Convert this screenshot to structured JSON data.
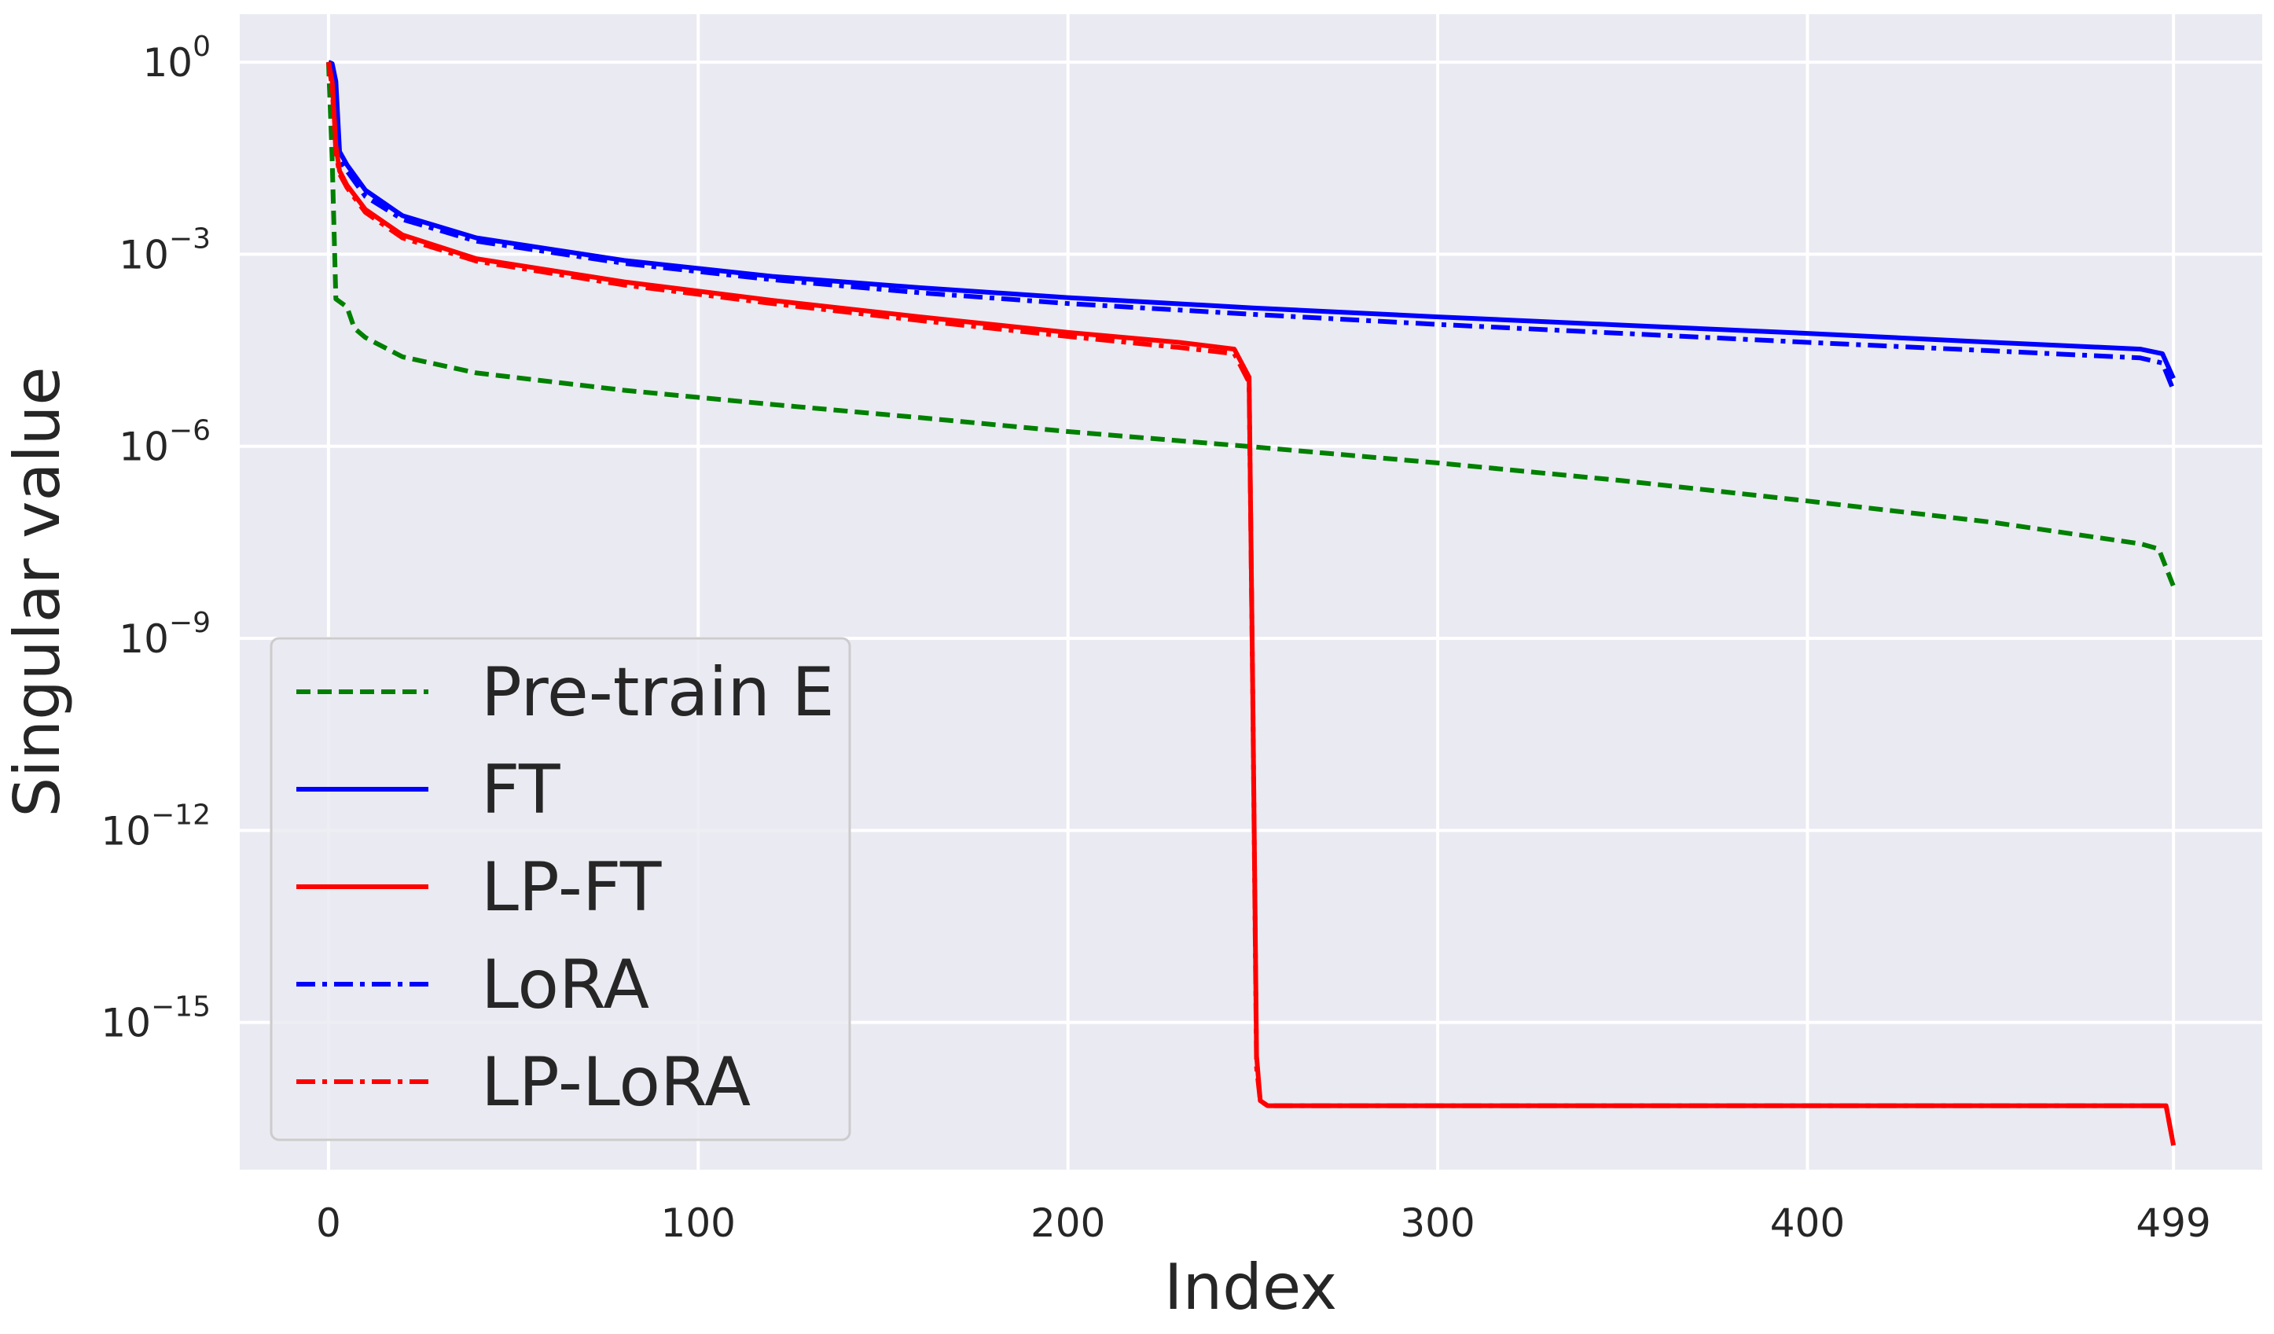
{
  "chart_data": {
    "type": "line",
    "title": "",
    "xlabel": "Index",
    "ylabel": "Singular value",
    "y_scale": "log",
    "xlim": [
      -24,
      523
    ],
    "ylim_log10": [
      -17.3,
      0.75
    ],
    "grid": true,
    "legend_placement": "lower-left",
    "x_ticks": [
      {
        "value": 0,
        "label": "0"
      },
      {
        "value": 100,
        "label": "100"
      },
      {
        "value": 200,
        "label": "200"
      },
      {
        "value": 300,
        "label": "300"
      },
      {
        "value": 400,
        "label": "400"
      },
      {
        "value": 499,
        "label": "499"
      }
    ],
    "y_ticks": [
      {
        "exp": 0,
        "base": "10",
        "sup": "0"
      },
      {
        "exp": -3,
        "base": "10",
        "sup": "−3"
      },
      {
        "exp": -6,
        "base": "10",
        "sup": "−6"
      },
      {
        "exp": -9,
        "base": "10",
        "sup": "−9"
      },
      {
        "exp": -12,
        "base": "10",
        "sup": "−12"
      },
      {
        "exp": -15,
        "base": "10",
        "sup": "−15"
      }
    ],
    "series": [
      {
        "name": "Pre-train E",
        "color": "#008000",
        "dash": "dashed",
        "points": [
          [
            0,
            1
          ],
          [
            1,
            0.03
          ],
          [
            2,
            0.0002
          ],
          [
            5,
            0.00015
          ],
          [
            7,
            7e-05
          ],
          [
            10,
            5e-05
          ],
          [
            20,
            2.5e-05
          ],
          [
            40,
            1.4e-05
          ],
          [
            80,
            7.5e-06
          ],
          [
            120,
            4.5e-06
          ],
          [
            160,
            2.8e-06
          ],
          [
            200,
            1.7e-06
          ],
          [
            250,
            9.8e-07
          ],
          [
            300,
            5.5e-07
          ],
          [
            350,
            2.9e-07
          ],
          [
            400,
            1.4e-07
          ],
          [
            450,
            6.5e-08
          ],
          [
            490,
            3e-08
          ],
          [
            495,
            2.5e-08
          ],
          [
            499,
            6.5e-09
          ]
        ]
      },
      {
        "name": "FT",
        "color": "#0000ff",
        "dash": "solid",
        "points": [
          [
            0,
            1
          ],
          [
            1,
            0.95
          ],
          [
            2,
            0.5
          ],
          [
            3,
            0.04
          ],
          [
            5,
            0.025
          ],
          [
            10,
            0.01
          ],
          [
            20,
            0.004
          ],
          [
            40,
            0.0018
          ],
          [
            80,
            0.0008
          ],
          [
            120,
            0.00045
          ],
          [
            160,
            0.0003
          ],
          [
            200,
            0.00021
          ],
          [
            250,
            0.000145
          ],
          [
            300,
            0.000105
          ],
          [
            350,
            7.8e-05
          ],
          [
            400,
            5.8e-05
          ],
          [
            450,
            4.2e-05
          ],
          [
            490,
            3.3e-05
          ],
          [
            496,
            2.8e-05
          ],
          [
            499,
            1.15e-05
          ]
        ]
      },
      {
        "name": "LP-FT",
        "color": "#ff0000",
        "dash": "solid",
        "points": [
          [
            0,
            1
          ],
          [
            1,
            0.5
          ],
          [
            2,
            0.05
          ],
          [
            3,
            0.02
          ],
          [
            5,
            0.012
          ],
          [
            10,
            0.005
          ],
          [
            20,
            0.002
          ],
          [
            40,
            0.00085
          ],
          [
            80,
            0.00037
          ],
          [
            120,
            0.00019
          ],
          [
            160,
            0.000105
          ],
          [
            200,
            6e-05
          ],
          [
            230,
            4.2e-05
          ],
          [
            245,
            3.3e-05
          ],
          [
            249,
            1.2e-05
          ],
          [
            250,
            1e-10
          ],
          [
            251,
            3e-16
          ],
          [
            252,
            6e-17
          ],
          [
            254,
            5e-17
          ],
          [
            300,
            5e-17
          ],
          [
            400,
            5e-17
          ],
          [
            497,
            5e-17
          ],
          [
            499,
            1.2e-17
          ]
        ]
      },
      {
        "name": "LoRA",
        "color": "#0000ff",
        "dash": "dashdot",
        "points": [
          [
            0,
            1
          ],
          [
            1,
            0.5
          ],
          [
            2,
            0.05
          ],
          [
            3,
            0.03
          ],
          [
            5,
            0.02
          ],
          [
            10,
            0.008
          ],
          [
            20,
            0.0035
          ],
          [
            40,
            0.0016
          ],
          [
            80,
            0.00072
          ],
          [
            120,
            0.0004
          ],
          [
            160,
            0.00025
          ],
          [
            200,
            0.00017
          ],
          [
            250,
            0.000115
          ],
          [
            300,
            8e-05
          ],
          [
            350,
            5.8e-05
          ],
          [
            400,
            4.2e-05
          ],
          [
            450,
            3.1e-05
          ],
          [
            490,
            2.4e-05
          ],
          [
            496,
            2e-05
          ],
          [
            499,
            7.5e-06
          ]
        ]
      },
      {
        "name": "LP-LoRA",
        "color": "#ff0000",
        "dash": "dashdot",
        "points": [
          [
            0,
            1
          ],
          [
            1,
            0.4
          ],
          [
            2,
            0.04
          ],
          [
            3,
            0.018
          ],
          [
            5,
            0.011
          ],
          [
            10,
            0.0045
          ],
          [
            20,
            0.0018
          ],
          [
            40,
            0.00078
          ],
          [
            80,
            0.00033
          ],
          [
            120,
            0.00017
          ],
          [
            160,
            9.2e-05
          ],
          [
            200,
            5.2e-05
          ],
          [
            230,
            3.5e-05
          ],
          [
            245,
            2.8e-05
          ],
          [
            249,
            1e-05
          ],
          [
            250,
            1e-10
          ],
          [
            251,
            2e-16
          ],
          [
            252,
            6e-17
          ],
          [
            254,
            5e-17
          ],
          [
            300,
            5e-17
          ],
          [
            400,
            5e-17
          ],
          [
            497,
            5e-17
          ],
          [
            499,
            1.2e-17
          ]
        ]
      }
    ]
  }
}
